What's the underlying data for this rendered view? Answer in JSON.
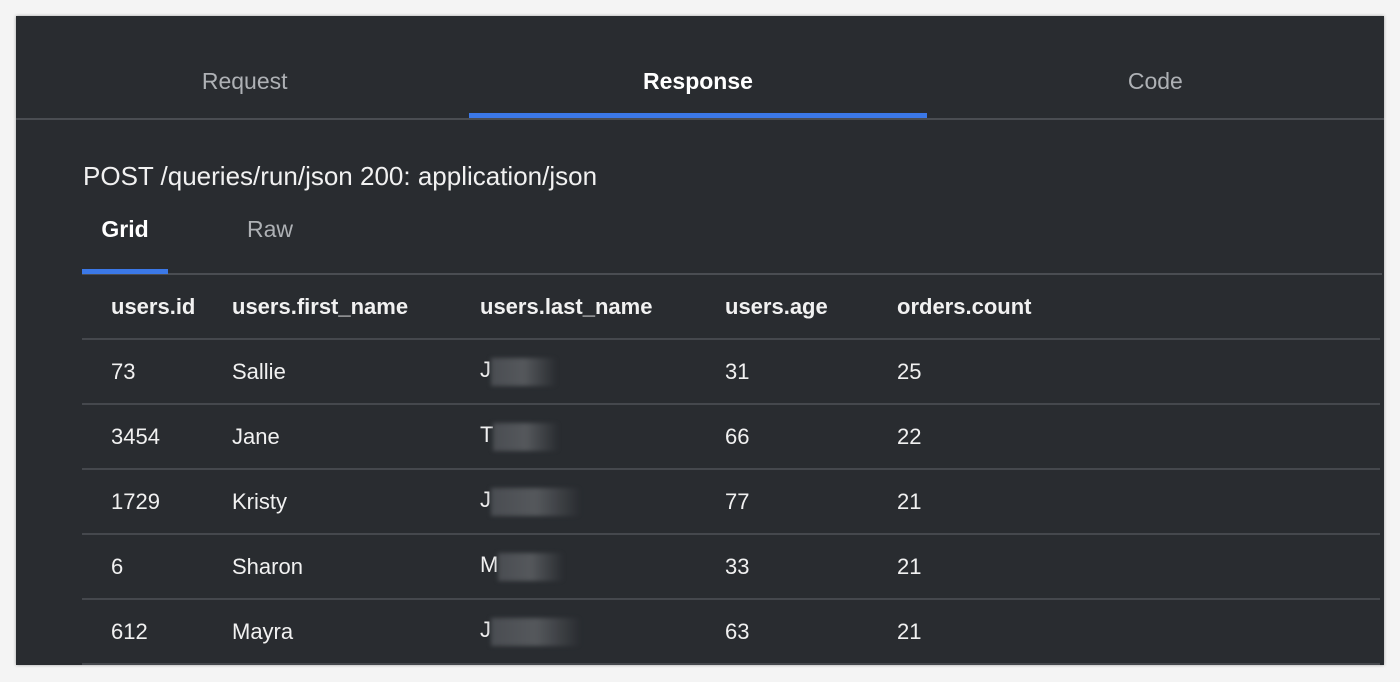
{
  "tabs": [
    {
      "label": "Request",
      "active": false
    },
    {
      "label": "Response",
      "active": true
    },
    {
      "label": "Code",
      "active": false
    }
  ],
  "heading": "POST /queries/run/json 200: application/json",
  "subtabs": [
    {
      "label": "Grid",
      "active": true
    },
    {
      "label": "Raw",
      "active": false
    }
  ],
  "accent_color": "#3b78e7",
  "table": {
    "headers": [
      "users.id",
      "users.first_name",
      "users.last_name",
      "users.age",
      "orders.count"
    ],
    "rows": [
      [
        "73",
        "Sallie",
        "J",
        "31",
        "25"
      ],
      [
        "3454",
        "Jane",
        "T",
        "66",
        "22"
      ],
      [
        "1729",
        "Kristy",
        "J",
        "77",
        "21"
      ],
      [
        "6",
        "Sharon",
        "M",
        "33",
        "21"
      ],
      [
        "612",
        "Mayra",
        "J",
        "63",
        "21"
      ]
    ]
  }
}
